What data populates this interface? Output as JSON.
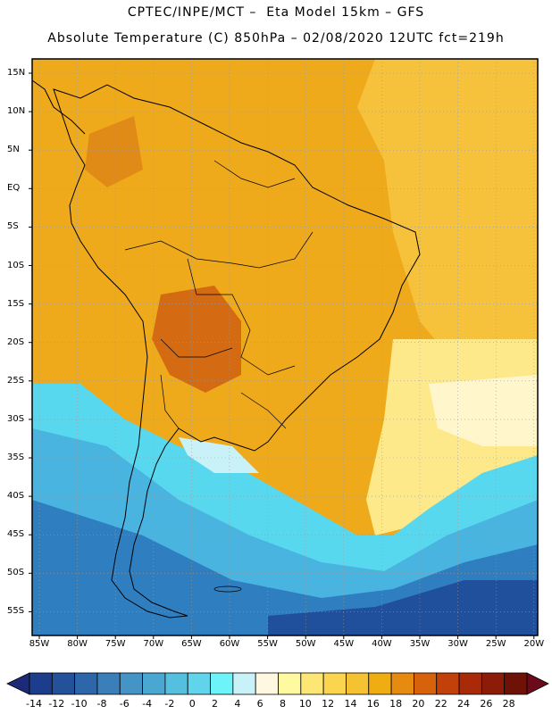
{
  "title_line1": "CPTEC/INPE/MCT –  Eta Model 15km – GFS",
  "title_line2": "Absolute Temperature (C) 850hPa – 02/08/2020 12UTC fct=219h",
  "lat_labels": [
    "15N",
    "10N",
    "5N",
    "EQ",
    "5S",
    "10S",
    "15S",
    "20S",
    "25S",
    "30S",
    "35S",
    "40S",
    "45S",
    "50S",
    "55S"
  ],
  "lon_labels": [
    "85W",
    "80W",
    "75W",
    "70W",
    "65W",
    "60W",
    "55W",
    "50W",
    "45W",
    "40W",
    "35W",
    "30W",
    "25W",
    "20W"
  ],
  "colorbar": {
    "labels": [
      "-14",
      "-12",
      "-10",
      "-8",
      "-6",
      "-4",
      "-2",
      "0",
      "2",
      "4",
      "6",
      "8",
      "10",
      "12",
      "14",
      "16",
      "18",
      "20",
      "22",
      "24",
      "26",
      "28"
    ],
    "colors": [
      "#1c3d8c",
      "#23529b",
      "#2d67aa",
      "#3a7fba",
      "#4494c6",
      "#4aa7d2",
      "#55bfdf",
      "#60d4ea",
      "#6cf4f8",
      "#c8f2f8",
      "#fff8e0",
      "#fffaa0",
      "#fde774",
      "#fbd54e",
      "#f5c232",
      "#f0ad12",
      "#e68a10",
      "#d8620c",
      "#c2400a",
      "#a82a08",
      "#8c1c08",
      "#6e1208"
    ],
    "left_arrow_color": "#1c2a78",
    "right_arrow_color": "#6a0a1a"
  },
  "colors": {
    "warm": "#efaa1c",
    "hot": "#d46a12",
    "mild": "#f6c23c",
    "pale": "#fde88a",
    "cream": "#fff6cc",
    "cyan": "#58d8ee",
    "sky": "#4ab4e0",
    "blue": "#2f7ec0",
    "deep": "#204f9c"
  }
}
